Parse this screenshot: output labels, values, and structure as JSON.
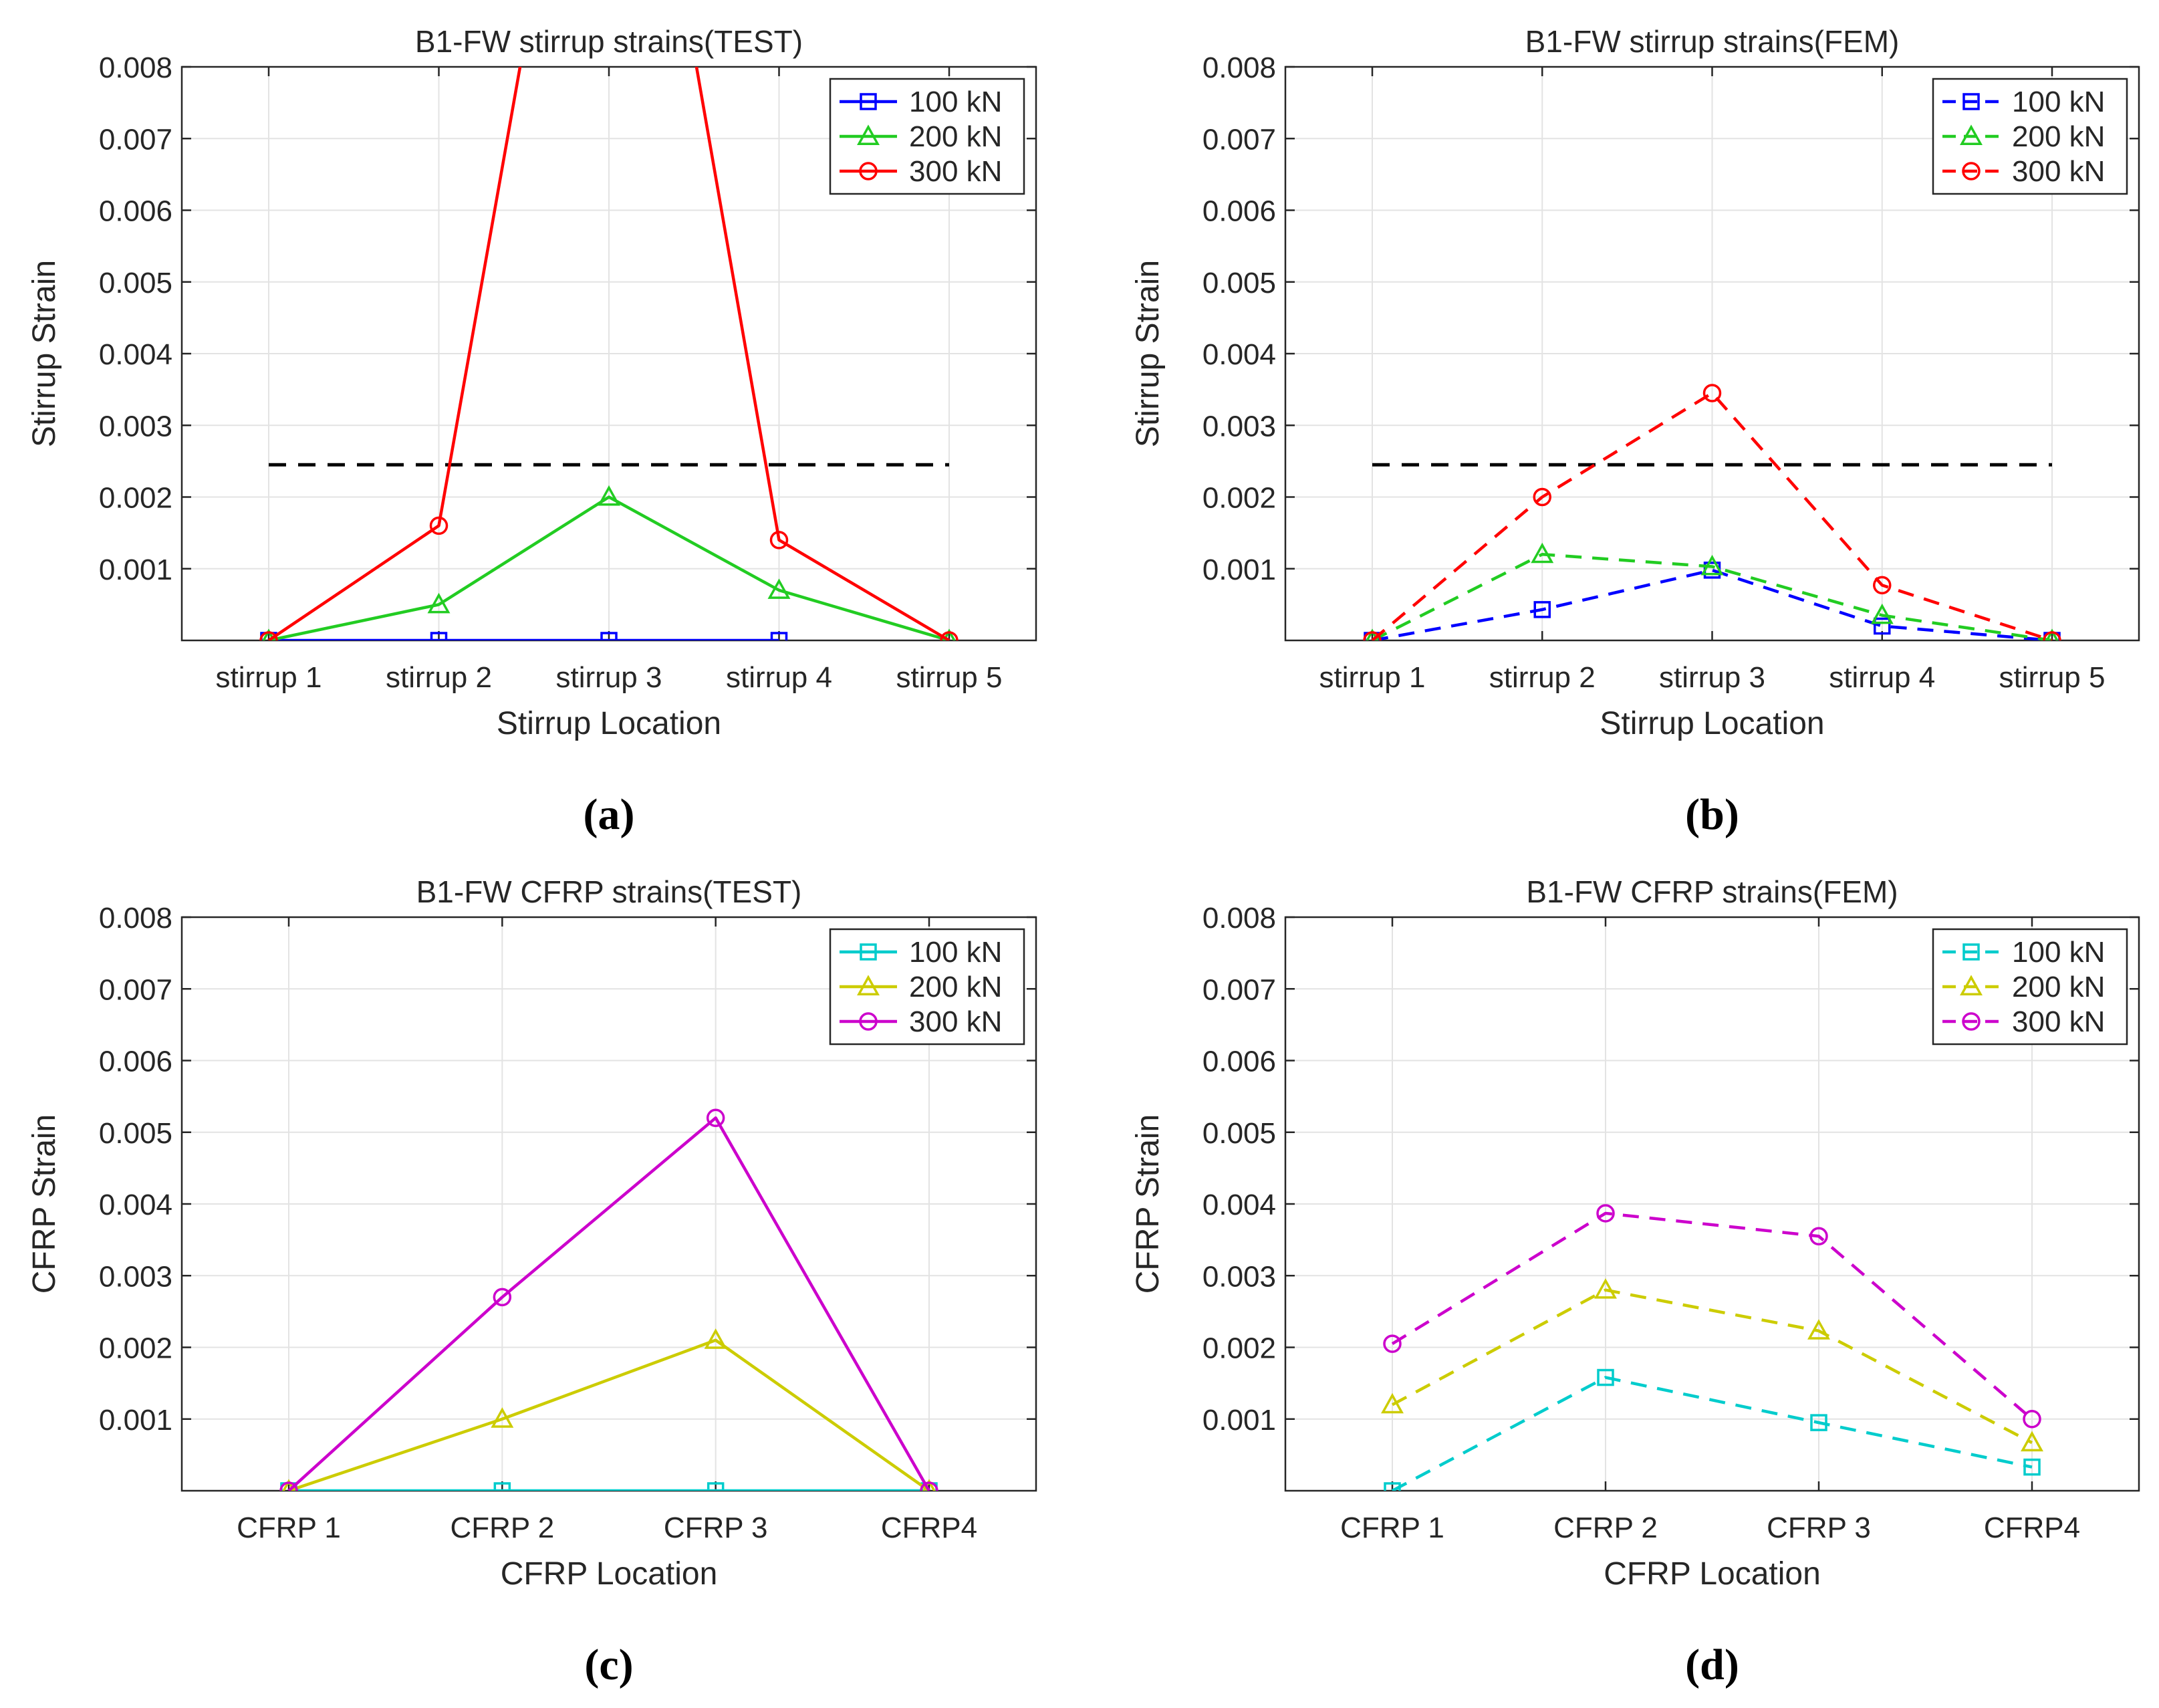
{
  "chart_data": [
    {
      "type": "line",
      "caption": "(a)",
      "title": "B1-FW stirrup strains(TEST)",
      "xlabel": "Stirrup Location",
      "ylabel": "Stirrup Strain",
      "categories": [
        "stirrup 1",
        "stirrup 2",
        "stirrup 3",
        "stirrup 4",
        "stirrup 5"
      ],
      "ylim": [
        0,
        0.008
      ],
      "yticks": [
        "0.001",
        "0.002",
        "0.003",
        "0.004",
        "0.005",
        "0.006",
        "0.007",
        "0.008"
      ],
      "grid": true,
      "legend_position": "top-right",
      "reference_line": {
        "value": 0.00245,
        "from": 1,
        "to": 5,
        "color": "#000000",
        "style": "dashed"
      },
      "series": [
        {
          "name": "100 kN",
          "color": "#0000ff",
          "marker": "square",
          "style": "solid",
          "values": [
            0,
            0,
            0,
            0,
            null
          ]
        },
        {
          "name": "200 kN",
          "color": "#22cc22",
          "marker": "triangle",
          "style": "solid",
          "values": [
            0,
            0.0005,
            0.002,
            0.0007,
            0
          ]
        },
        {
          "name": "300 kN",
          "color": "#ff0000",
          "marker": "circle",
          "style": "solid",
          "values": [
            0,
            0.0016,
            0.015,
            0.0014,
            0
          ]
        }
      ]
    },
    {
      "type": "line",
      "caption": "(b)",
      "title": "B1-FW stirrup strains(FEM)",
      "xlabel": "Stirrup Location",
      "ylabel": "Stirrup Strain",
      "categories": [
        "stirrup 1",
        "stirrup 2",
        "stirrup 3",
        "stirrup 4",
        "stirrup 5"
      ],
      "ylim": [
        0,
        0.008
      ],
      "yticks": [
        "0.001",
        "0.002",
        "0.003",
        "0.004",
        "0.005",
        "0.006",
        "0.007",
        "0.008"
      ],
      "grid": true,
      "legend_position": "top-right",
      "reference_line": {
        "value": 0.00245,
        "from": 1,
        "to": 5,
        "color": "#000000",
        "style": "dashed"
      },
      "series": [
        {
          "name": "100 kN",
          "color": "#0000ff",
          "marker": "square",
          "style": "dashed",
          "values": [
            0,
            0.00043,
            0.00098,
            0.0002,
            0
          ]
        },
        {
          "name": "200 kN",
          "color": "#22cc22",
          "marker": "triangle",
          "style": "dashed",
          "values": [
            0,
            0.0012,
            0.00103,
            0.00035,
            0
          ]
        },
        {
          "name": "300 kN",
          "color": "#ff0000",
          "marker": "circle",
          "style": "dashed",
          "values": [
            0,
            0.002,
            0.00345,
            0.00077,
            0
          ]
        }
      ]
    },
    {
      "type": "line",
      "caption": "(c)",
      "title": "B1-FW CFRP strains(TEST)",
      "xlabel": "CFRP Location",
      "ylabel": "CFRP Strain",
      "categories": [
        "CFRP 1",
        "CFRP 2",
        "CFRP 3",
        "CFRP4"
      ],
      "ylim": [
        0,
        0.008
      ],
      "yticks": [
        "0.001",
        "0.002",
        "0.003",
        "0.004",
        "0.005",
        "0.006",
        "0.007",
        "0.008"
      ],
      "grid": true,
      "legend_position": "top-right",
      "series": [
        {
          "name": "100 kN",
          "color": "#00cccc",
          "marker": "square",
          "style": "solid",
          "values": [
            0,
            0,
            0,
            0
          ]
        },
        {
          "name": "200 kN",
          "color": "#cccc00",
          "marker": "triangle",
          "style": "solid",
          "values": [
            0,
            0.001,
            0.0021,
            0
          ]
        },
        {
          "name": "300 kN",
          "color": "#cc00cc",
          "marker": "circle",
          "style": "solid",
          "values": [
            0,
            0.0027,
            0.0052,
            0
          ]
        }
      ]
    },
    {
      "type": "line",
      "caption": "(d)",
      "title": "B1-FW CFRP strains(FEM)",
      "xlabel": "CFRP Location",
      "ylabel": "CFRP Strain",
      "categories": [
        "CFRP 1",
        "CFRP 2",
        "CFRP 3",
        "CFRP4"
      ],
      "ylim": [
        0,
        0.008
      ],
      "yticks": [
        "0.001",
        "0.002",
        "0.003",
        "0.004",
        "0.005",
        "0.006",
        "0.007",
        "0.008"
      ],
      "grid": true,
      "legend_position": "top-right",
      "series": [
        {
          "name": "100 kN",
          "color": "#00cccc",
          "marker": "square",
          "style": "dashed",
          "values": [
            0,
            0.00158,
            0.00095,
            0.00033
          ]
        },
        {
          "name": "200 kN",
          "color": "#cccc00",
          "marker": "triangle",
          "style": "dashed",
          "values": [
            0.0012,
            0.0028,
            0.00223,
            0.00067
          ]
        },
        {
          "name": "300 kN",
          "color": "#cc00cc",
          "marker": "circle",
          "style": "dashed",
          "values": [
            0.00205,
            0.00387,
            0.00355,
            0.001
          ]
        }
      ]
    }
  ]
}
